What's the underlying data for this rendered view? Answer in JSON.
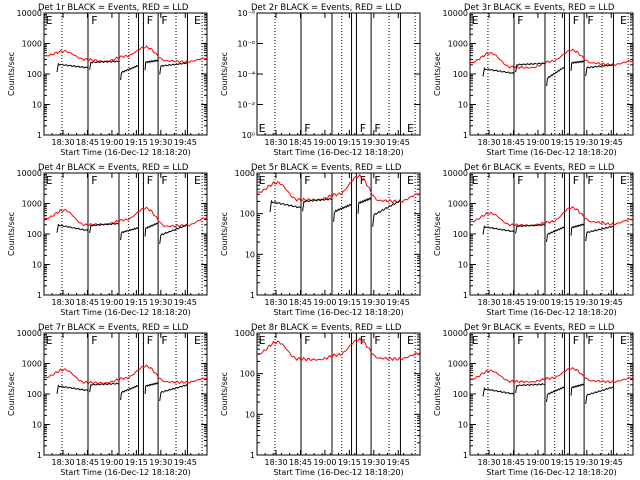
{
  "colors": {
    "events": "#000000",
    "lld": "#ff0000",
    "axes": "#000000",
    "background": "#ffffff"
  },
  "chart_data": {
    "type": "line",
    "y_scale": "log",
    "xlabel": "Start Time (16-Dec-12 18:18:20)",
    "ylabel": "Counts/sec",
    "xticks": [
      "18:30",
      "18:45",
      "19:00",
      "19:15",
      "19:30",
      "19:45"
    ],
    "xtick_minutes": [
      11.67,
      26.67,
      41.67,
      56.67,
      71.67,
      86.67
    ],
    "x_range_minutes": [
      0,
      100
    ],
    "legend": "BLACK = Events, RED = LLD",
    "series": [
      {
        "name": "Events",
        "color": "#000000"
      },
      {
        "name": "LLD",
        "color": "#ff0000"
      }
    ],
    "vlines_solid": [
      27,
      46,
      58,
      61,
      70,
      88
    ],
    "vlines_dotted": [
      11,
      52,
      81,
      97
    ],
    "panels": [
      {
        "title": "Det 1r BLACK = Events, RED = LLD",
        "ylim": [
          1,
          10000
        ],
        "yticks": [
          "1",
          "10",
          "100",
          "1000",
          "10000"
        ],
        "flags": [
          "E",
          "F",
          "F",
          "F",
          "E"
        ],
        "lld": [
          390,
          560,
          300,
          260,
          380,
          760,
          270,
          250,
          330
        ],
        "events": [
          210,
          160,
          240,
          260,
          110,
          190,
          240,
          280,
          180,
          230,
          250,
          160
        ]
      },
      {
        "title": "Det 2r BLACK = Events, RED = LLD",
        "ylim": [
          1,
          1e-08
        ],
        "yticks": [
          "10⁰",
          "10⁻²",
          "10⁻⁴",
          "10⁻⁶",
          "10⁻⁸"
        ],
        "flags": [
          "E",
          "F",
          "F",
          "F",
          "E"
        ],
        "lld": [],
        "events": []
      },
      {
        "title": "Det 3r BLACK = Events, RED = LLD",
        "ylim": [
          1,
          10000
        ],
        "yticks": [
          "1",
          "10",
          "100",
          "1000",
          "10000"
        ],
        "flags": [
          "E",
          "F",
          "F",
          "F",
          "E"
        ],
        "lld": [
          230,
          480,
          170,
          160,
          260,
          600,
          230,
          200,
          270
        ],
        "events": [
          150,
          105,
          200,
          225,
          70,
          170,
          230,
          260,
          160,
          200,
          230,
          100
        ]
      },
      {
        "title": "Det 4r BLACK = Events, RED = LLD",
        "ylim": [
          1,
          10000
        ],
        "yticks": [
          "1",
          "10",
          "100",
          "1000",
          "10000"
        ],
        "flags": [
          "E",
          "F",
          "F",
          "F",
          "E"
        ],
        "lld": [
          310,
          600,
          200,
          210,
          290,
          700,
          180,
          190,
          340
        ],
        "events": [
          200,
          130,
          190,
          220,
          110,
          160,
          150,
          230,
          90,
          200,
          210,
          130
        ]
      },
      {
        "title": "Det 5r BLACK = Events, RED = LLD",
        "ylim": [
          1,
          1000
        ],
        "yticks": [
          "1",
          "10",
          "100",
          "1000"
        ],
        "flags": [
          "E",
          "F",
          "F",
          "F",
          "E"
        ],
        "lld": [
          330,
          580,
          220,
          220,
          300,
          840,
          210,
          200,
          310
        ],
        "events": [
          200,
          140,
          200,
          230,
          110,
          170,
          180,
          240,
          90,
          210,
          220,
          150
        ]
      },
      {
        "title": "Det 6r BLACK = Events, RED = LLD",
        "ylim": [
          1,
          10000
        ],
        "yticks": [
          "1",
          "10",
          "100",
          "1000",
          "10000"
        ],
        "flags": [
          "E",
          "F",
          "F",
          "F",
          "E"
        ],
        "lld": [
          250,
          480,
          200,
          190,
          250,
          730,
          250,
          210,
          310
        ],
        "events": [
          175,
          120,
          180,
          200,
          95,
          170,
          160,
          210,
          110,
          180,
          190,
          120
        ]
      },
      {
        "title": "Det 7r BLACK = Events, RED = LLD",
        "ylim": [
          1,
          10000
        ],
        "yticks": [
          "1",
          "10",
          "100",
          "1000",
          "10000"
        ],
        "flags": [
          "E",
          "F",
          "F",
          "F",
          "E"
        ],
        "lld": [
          340,
          630,
          240,
          230,
          330,
          820,
          250,
          240,
          330
        ],
        "events": [
          185,
          130,
          200,
          220,
          110,
          190,
          180,
          230,
          110,
          200,
          210,
          140
        ]
      },
      {
        "title": "Det 8r BLACK = Events, RED = LLD",
        "ylim": [
          1,
          1000
        ],
        "yticks": [
          "1",
          "10",
          "100",
          "1000"
        ],
        "flags": [
          "E",
          "F",
          "F",
          "F",
          "E"
        ],
        "lld": [
          300,
          600,
          230,
          220,
          290,
          680,
          240,
          230,
          320
        ],
        "events": []
      },
      {
        "title": "Det 9r BLACK = Events, RED = LLD",
        "ylim": [
          1,
          10000
        ],
        "yticks": [
          "1",
          "10",
          "100",
          "1000",
          "10000"
        ],
        "flags": [
          "E",
          "F",
          "F",
          "F",
          "E"
        ],
        "lld": [
          300,
          580,
          260,
          250,
          330,
          680,
          270,
          250,
          340
        ],
        "events": [
          150,
          100,
          190,
          210,
          95,
          170,
          160,
          210,
          90,
          170,
          180,
          110
        ]
      }
    ]
  }
}
